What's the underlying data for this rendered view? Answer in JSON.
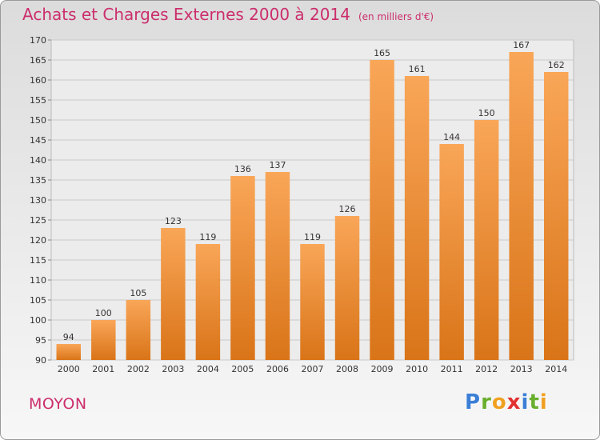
{
  "chart_data": {
    "type": "bar",
    "title": "Achats et Charges Externes 2000 à 2014",
    "subtitle": "(en milliers d'€)",
    "categories": [
      "2000",
      "2001",
      "2002",
      "2003",
      "2004",
      "2005",
      "2006",
      "2007",
      "2008",
      "2009",
      "2010",
      "2011",
      "2012",
      "2013",
      "2014"
    ],
    "values": [
      94,
      100,
      105,
      123,
      119,
      136,
      137,
      119,
      126,
      165,
      161,
      144,
      150,
      167,
      162
    ],
    "ylim": [
      90,
      170
    ],
    "yticks": [
      90,
      95,
      100,
      105,
      110,
      115,
      120,
      125,
      130,
      135,
      140,
      145,
      150,
      155,
      160,
      165,
      170
    ],
    "grid": true,
    "data_labels": true,
    "colors": {
      "bar_top": "#f9a658",
      "bar_bottom": "#d97418",
      "title": "#cc2e6c",
      "grid": "#c9c9c9"
    }
  },
  "commune": "MOYON",
  "brand": {
    "letters": [
      "P",
      "r",
      "o",
      "x",
      "i",
      "t",
      "i"
    ],
    "colors": [
      "#3a7fd5",
      "#6aae2e",
      "#f0a020",
      "#e23030",
      "#3a7fd5",
      "#6aae2e",
      "#f0a020"
    ]
  }
}
